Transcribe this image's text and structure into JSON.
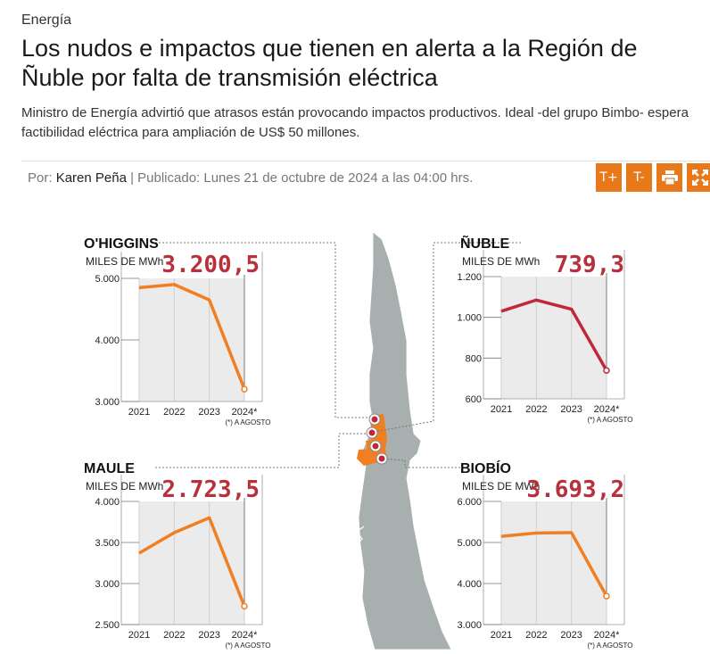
{
  "article": {
    "section": "Energía",
    "title": "Los nudos e impactos que tienen en alerta a la Región de Ñuble por falta de transmisión eléctrica",
    "subtitle": "Ministro de Energía advirtió que atrasos están provocando impactos productivos. Ideal -del grupo Bimbo- espera factibilidad eléctrica para ampliación de US$ 50 millones.",
    "byline_prefix": "Por:",
    "author": "Karen Peña",
    "published": "| Publicado: Lunes 21 de octubre de 2024 a las 04:00 hrs."
  },
  "toolbar": {
    "font_up": "T+",
    "font_down": "T-",
    "print_icon": "printer-icon",
    "fullscreen_icon": "expand-icon"
  },
  "chart_data": [
    {
      "type": "line",
      "title": "O'HIGGINS",
      "ylabel": "MILES DE MWh",
      "highlight": "3.200,5",
      "categories": [
        "2021",
        "2022",
        "2023",
        "2024*"
      ],
      "values": [
        4850,
        4900,
        4650,
        3200.5
      ],
      "ylim": [
        3000,
        5000
      ],
      "yticks": [
        "3.000",
        "4.000",
        "5.000"
      ],
      "ytick_values": [
        3000,
        4000,
        5000
      ],
      "line_color": "#f07f22",
      "note": "(*) A AGOSTO"
    },
    {
      "type": "line",
      "title": "ÑUBLE",
      "ylabel": "MILES DE MWh",
      "highlight": "739,3",
      "categories": [
        "2021",
        "2022",
        "2023",
        "2024*"
      ],
      "values": [
        1030,
        1085,
        1040,
        739.3
      ],
      "ylim": [
        600,
        1200
      ],
      "yticks": [
        "600",
        "800",
        "1.000",
        "1.200"
      ],
      "ytick_values": [
        600,
        800,
        1000,
        1200
      ],
      "line_color": "#c0283a",
      "note": "(*) A AGOSTO"
    },
    {
      "type": "line",
      "title": "MAULE",
      "ylabel": "MILES DE MWh",
      "highlight": "2.723,5",
      "categories": [
        "2021",
        "2022",
        "2023",
        "2024*"
      ],
      "values": [
        3370,
        3620,
        3800,
        2723.5
      ],
      "ylim": [
        2500,
        4000
      ],
      "yticks": [
        "2.500",
        "3.000",
        "3.500",
        "4.000"
      ],
      "ytick_values": [
        2500,
        3000,
        3500,
        4000
      ],
      "line_color": "#f07f22",
      "note": "(*) A AGOSTO"
    },
    {
      "type": "line",
      "title": "BIOBÍO",
      "ylabel": "MILES DE MWh",
      "highlight": "3.693,2",
      "categories": [
        "2021",
        "2022",
        "2023",
        "2024*"
      ],
      "values": [
        5150,
        5230,
        5240,
        3693.2
      ],
      "ylim": [
        3000,
        6000
      ],
      "yticks": [
        "3.000",
        "4.000",
        "5.000",
        "6.000"
      ],
      "ytick_values": [
        3000,
        4000,
        5000,
        6000
      ],
      "line_color": "#f07f22",
      "note": "(*) A AGOSTO"
    }
  ],
  "map": {
    "land_color": "#a7b0ae",
    "highlight_color": "#f07f22",
    "marker_color": "#c0283a"
  }
}
